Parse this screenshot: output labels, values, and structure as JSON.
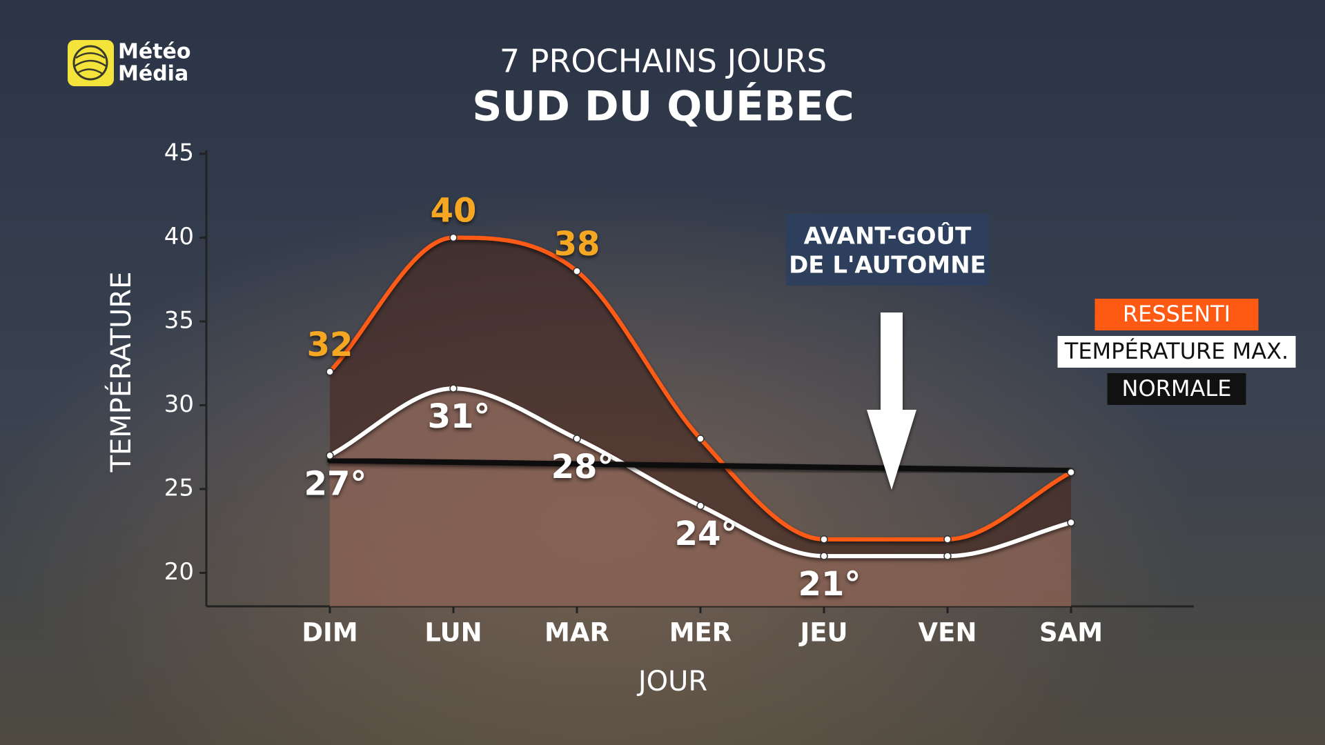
{
  "chart_data": {
    "type": "line",
    "logo": [
      "Météo",
      "Média"
    ],
    "title": "7 PROCHAINS JOURS",
    "subtitle": "SUD DU QUÉBEC",
    "x_label": "JOUR",
    "y_label": "TEMPÉRATURE",
    "annotation": [
      "AVANT-GOÛT",
      "DE L'AUTOMNE"
    ],
    "categories": [
      "DIM",
      "LUN",
      "MAR",
      "MER",
      "JEU",
      "VEN",
      "SAM"
    ],
    "ylim": [
      18,
      45
    ],
    "yticks": [
      20,
      25,
      30,
      35,
      40,
      45
    ],
    "series": [
      {
        "name": "RESSENTI",
        "color": "#ff5a14",
        "label_color": "#f5a623",
        "area": true,
        "values": [
          32,
          40,
          38,
          28,
          22,
          22,
          26
        ],
        "value_labels": [
          "32",
          "40",
          "38",
          null,
          null,
          null,
          null
        ]
      },
      {
        "name": "TEMPÉRATURE MAX.",
        "color": "#ffffff",
        "label_color": "#ffffff",
        "area": true,
        "values": [
          27,
          31,
          28,
          24,
          21,
          21,
          23
        ],
        "value_labels": [
          "27°",
          "31°",
          "28°",
          "24°",
          "21°",
          null,
          null
        ]
      },
      {
        "name": "NORMALE",
        "color": "#111111",
        "area": false,
        "values": [
          26.7,
          26.6,
          26.5,
          26.4,
          26.3,
          26.2,
          26.1
        ]
      }
    ]
  }
}
